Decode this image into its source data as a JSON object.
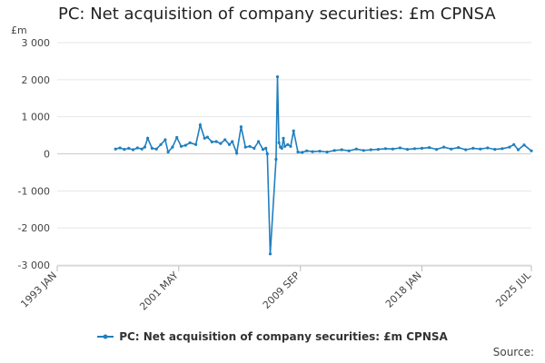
{
  "chart_data": {
    "type": "line",
    "title": "PC: Net acquisition of company securities: £m CPNSA",
    "unit_label": "£m",
    "source_label": "Source:",
    "series_name": "PC: Net acquisition of company securities: £m CPNSA",
    "color": "#1f7fbf",
    "ylim": [
      -3000,
      3000
    ],
    "yticks": [
      3000,
      2000,
      1000,
      0,
      -1000,
      -2000,
      -3000
    ],
    "ytick_labels": [
      "3 000",
      "2 000",
      "1 000",
      "0",
      "-1 000",
      "-2 000",
      "-3 000"
    ],
    "xlim": [
      1993.0,
      2025.5
    ],
    "xticks": [
      1993.0,
      2001.33,
      2009.67,
      2018.0,
      2025.5
    ],
    "xtick_labels": [
      "1993 JAN",
      "2001 MAY",
      "2009 SEP",
      "2018 JAN",
      "2025 JUL"
    ],
    "x": [
      1997.0,
      1997.3,
      1997.6,
      1997.9,
      1998.2,
      1998.5,
      1998.8,
      1999.0,
      1999.2,
      1999.5,
      1999.8,
      2000.1,
      2000.4,
      2000.6,
      2000.9,
      2001.2,
      2001.5,
      2001.8,
      2002.1,
      2002.5,
      2002.8,
      2003.1,
      2003.3,
      2003.6,
      2003.9,
      2004.2,
      2004.5,
      2004.8,
      2005.0,
      2005.3,
      2005.6,
      2005.9,
      2006.2,
      2006.5,
      2006.8,
      2007.1,
      2007.3,
      2007.4,
      2007.6,
      2008.0,
      2008.1,
      2008.2,
      2008.3,
      2008.4,
      2008.5,
      2008.6,
      2008.8,
      2009.0,
      2009.2,
      2009.5,
      2009.8,
      2010.1,
      2010.5,
      2011.0,
      2011.5,
      2012.0,
      2012.5,
      2013.0,
      2013.5,
      2014.0,
      2014.5,
      2015.0,
      2015.5,
      2016.0,
      2016.5,
      2017.0,
      2017.5,
      2018.0,
      2018.5,
      2019.0,
      2019.5,
      2020.0,
      2020.5,
      2021.0,
      2021.5,
      2022.0,
      2022.5,
      2023.0,
      2023.5,
      2024.0,
      2024.3,
      2024.6,
      2025.0,
      2025.5
    ],
    "values": [
      130,
      160,
      120,
      150,
      110,
      160,
      130,
      180,
      420,
      150,
      130,
      250,
      380,
      50,
      180,
      440,
      200,
      230,
      300,
      250,
      780,
      420,
      450,
      320,
      330,
      280,
      380,
      250,
      330,
      20,
      730,
      180,
      200,
      150,
      330,
      120,
      150,
      0,
      -2700,
      -150,
      2080,
      300,
      180,
      150,
      420,
      200,
      250,
      200,
      620,
      50,
      40,
      80,
      60,
      70,
      50,
      90,
      110,
      80,
      130,
      90,
      110,
      120,
      140,
      130,
      160,
      120,
      140,
      150,
      170,
      120,
      180,
      130,
      170,
      110,
      150,
      130,
      160,
      120,
      140,
      180,
      250,
      110,
      240,
      80
    ]
  }
}
